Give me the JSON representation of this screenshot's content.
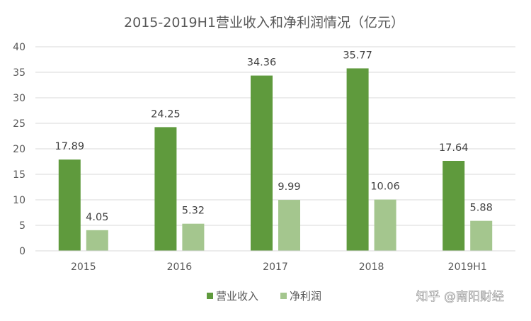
{
  "chart_data": {
    "type": "bar",
    "title": "2015-2019H1营业收入和净利润情况（亿元）",
    "categories": [
      "2015",
      "2016",
      "2017",
      "2018",
      "2019H1"
    ],
    "series": [
      {
        "name": "营业收入",
        "values": [
          17.89,
          24.25,
          34.36,
          35.77,
          17.64
        ],
        "labels": [
          "17.89",
          "24.25",
          "34.36",
          "35.77",
          "17.64"
        ],
        "color": "#5f9a3d"
      },
      {
        "name": "净利润",
        "values": [
          4.05,
          5.32,
          9.99,
          10.06,
          5.88
        ],
        "labels": [
          "4.05",
          "5.32",
          "9.99",
          "10.06",
          "5.88"
        ],
        "color": "#a4c68e"
      }
    ],
    "ylim": [
      0,
      40
    ],
    "yticks": [
      "0",
      "5",
      "10",
      "15",
      "20",
      "25",
      "30",
      "35",
      "40"
    ],
    "grid": true,
    "legend_position": "bottom"
  },
  "watermark": "知乎 @南阳财经"
}
